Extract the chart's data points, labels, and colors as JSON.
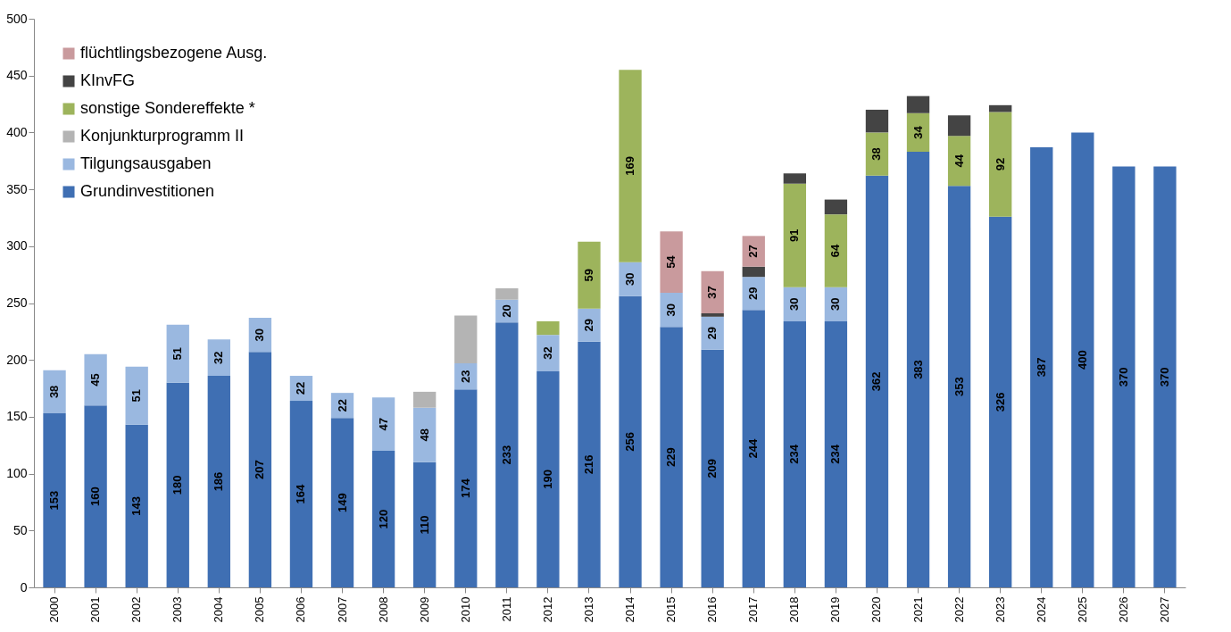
{
  "chart_data": {
    "type": "bar",
    "stacked": true,
    "categories": [
      "2000",
      "2001",
      "2002",
      "2003",
      "2004",
      "2005",
      "2006",
      "2007",
      "2008",
      "2009",
      "2010",
      "2011",
      "2012",
      "2013",
      "2014",
      "2015",
      "2016",
      "2017",
      "2018",
      "2019",
      "2020",
      "2021",
      "2022",
      "2023",
      "2024",
      "2025",
      "2026",
      "2027"
    ],
    "series": [
      {
        "name": "Grundinvestitionen",
        "color": "#3f6fb3",
        "values": [
          153,
          160,
          143,
          180,
          186,
          207,
          164,
          149,
          120,
          110,
          174,
          233,
          190,
          216,
          256,
          229,
          209,
          244,
          234,
          234,
          362,
          383,
          353,
          326,
          387,
          400,
          370,
          370
        ],
        "value_labels": [
          "153",
          "160",
          "143",
          "180",
          "186",
          "207",
          "164",
          "149",
          "120",
          "110",
          "174",
          "233",
          "190",
          "216",
          "256",
          "229",
          "209",
          "244",
          "234",
          "234",
          "362",
          "383",
          "353",
          "326",
          "387",
          "400",
          "370",
          "370"
        ]
      },
      {
        "name": "Tilgungsausgaben",
        "color": "#9ab8e0",
        "values": [
          38,
          45,
          51,
          51,
          32,
          30,
          22,
          22,
          47,
          48,
          23,
          20,
          32,
          29,
          30,
          30,
          29,
          29,
          30,
          30,
          null,
          null,
          null,
          null,
          null,
          null,
          null,
          null
        ],
        "value_labels": [
          "38",
          "45",
          "51",
          "51",
          "32",
          "30",
          "22",
          "22",
          "47",
          "48",
          "23",
          "20",
          "32",
          "29",
          "30",
          "30",
          "29",
          "29",
          "30",
          "30",
          null,
          null,
          null,
          null,
          null,
          null,
          null,
          null
        ]
      },
      {
        "name": "Konjunkturprogramm II",
        "color": "#b4b4b4",
        "values": [
          null,
          null,
          null,
          null,
          null,
          null,
          null,
          null,
          null,
          14,
          42,
          10,
          null,
          null,
          null,
          null,
          null,
          null,
          null,
          null,
          null,
          null,
          null,
          null,
          null,
          null,
          null,
          null
        ]
      },
      {
        "name": "sonstige Sondereffekte *",
        "color": "#9db45c",
        "values": [
          null,
          null,
          null,
          null,
          null,
          null,
          null,
          null,
          null,
          null,
          null,
          null,
          12,
          59,
          169,
          null,
          null,
          null,
          91,
          64,
          38,
          34,
          44,
          92,
          null,
          null,
          null,
          null
        ],
        "value_labels": [
          null,
          null,
          null,
          null,
          null,
          null,
          null,
          null,
          null,
          null,
          null,
          null,
          null,
          "59",
          "169",
          null,
          null,
          null,
          "91",
          "64",
          "38",
          "34",
          "44",
          "92",
          null,
          null,
          null,
          null
        ]
      },
      {
        "name": "KInvFG",
        "color": "#444444",
        "values": [
          null,
          null,
          null,
          null,
          null,
          null,
          null,
          null,
          null,
          null,
          null,
          null,
          null,
          null,
          null,
          null,
          3,
          9,
          9,
          13,
          20,
          15,
          18,
          6,
          null,
          null,
          null,
          null
        ]
      },
      {
        "name": "flüchtlingsbezogene Ausg.",
        "color": "#c99a9d",
        "values": [
          null,
          null,
          null,
          null,
          null,
          null,
          null,
          null,
          null,
          null,
          null,
          null,
          null,
          null,
          null,
          54,
          37,
          27,
          null,
          null,
          null,
          null,
          null,
          null,
          null,
          null,
          null,
          null
        ],
        "value_labels": [
          null,
          null,
          null,
          null,
          null,
          null,
          null,
          null,
          null,
          null,
          null,
          null,
          null,
          null,
          null,
          "54",
          "37",
          "27",
          null,
          null,
          null,
          null,
          null,
          null,
          null,
          null,
          null,
          null
        ]
      }
    ],
    "ylim": [
      0,
      500
    ],
    "yticks": [
      0,
      50,
      100,
      150,
      200,
      250,
      300,
      350,
      400,
      450,
      500
    ],
    "grid": false,
    "legend": "top left"
  }
}
